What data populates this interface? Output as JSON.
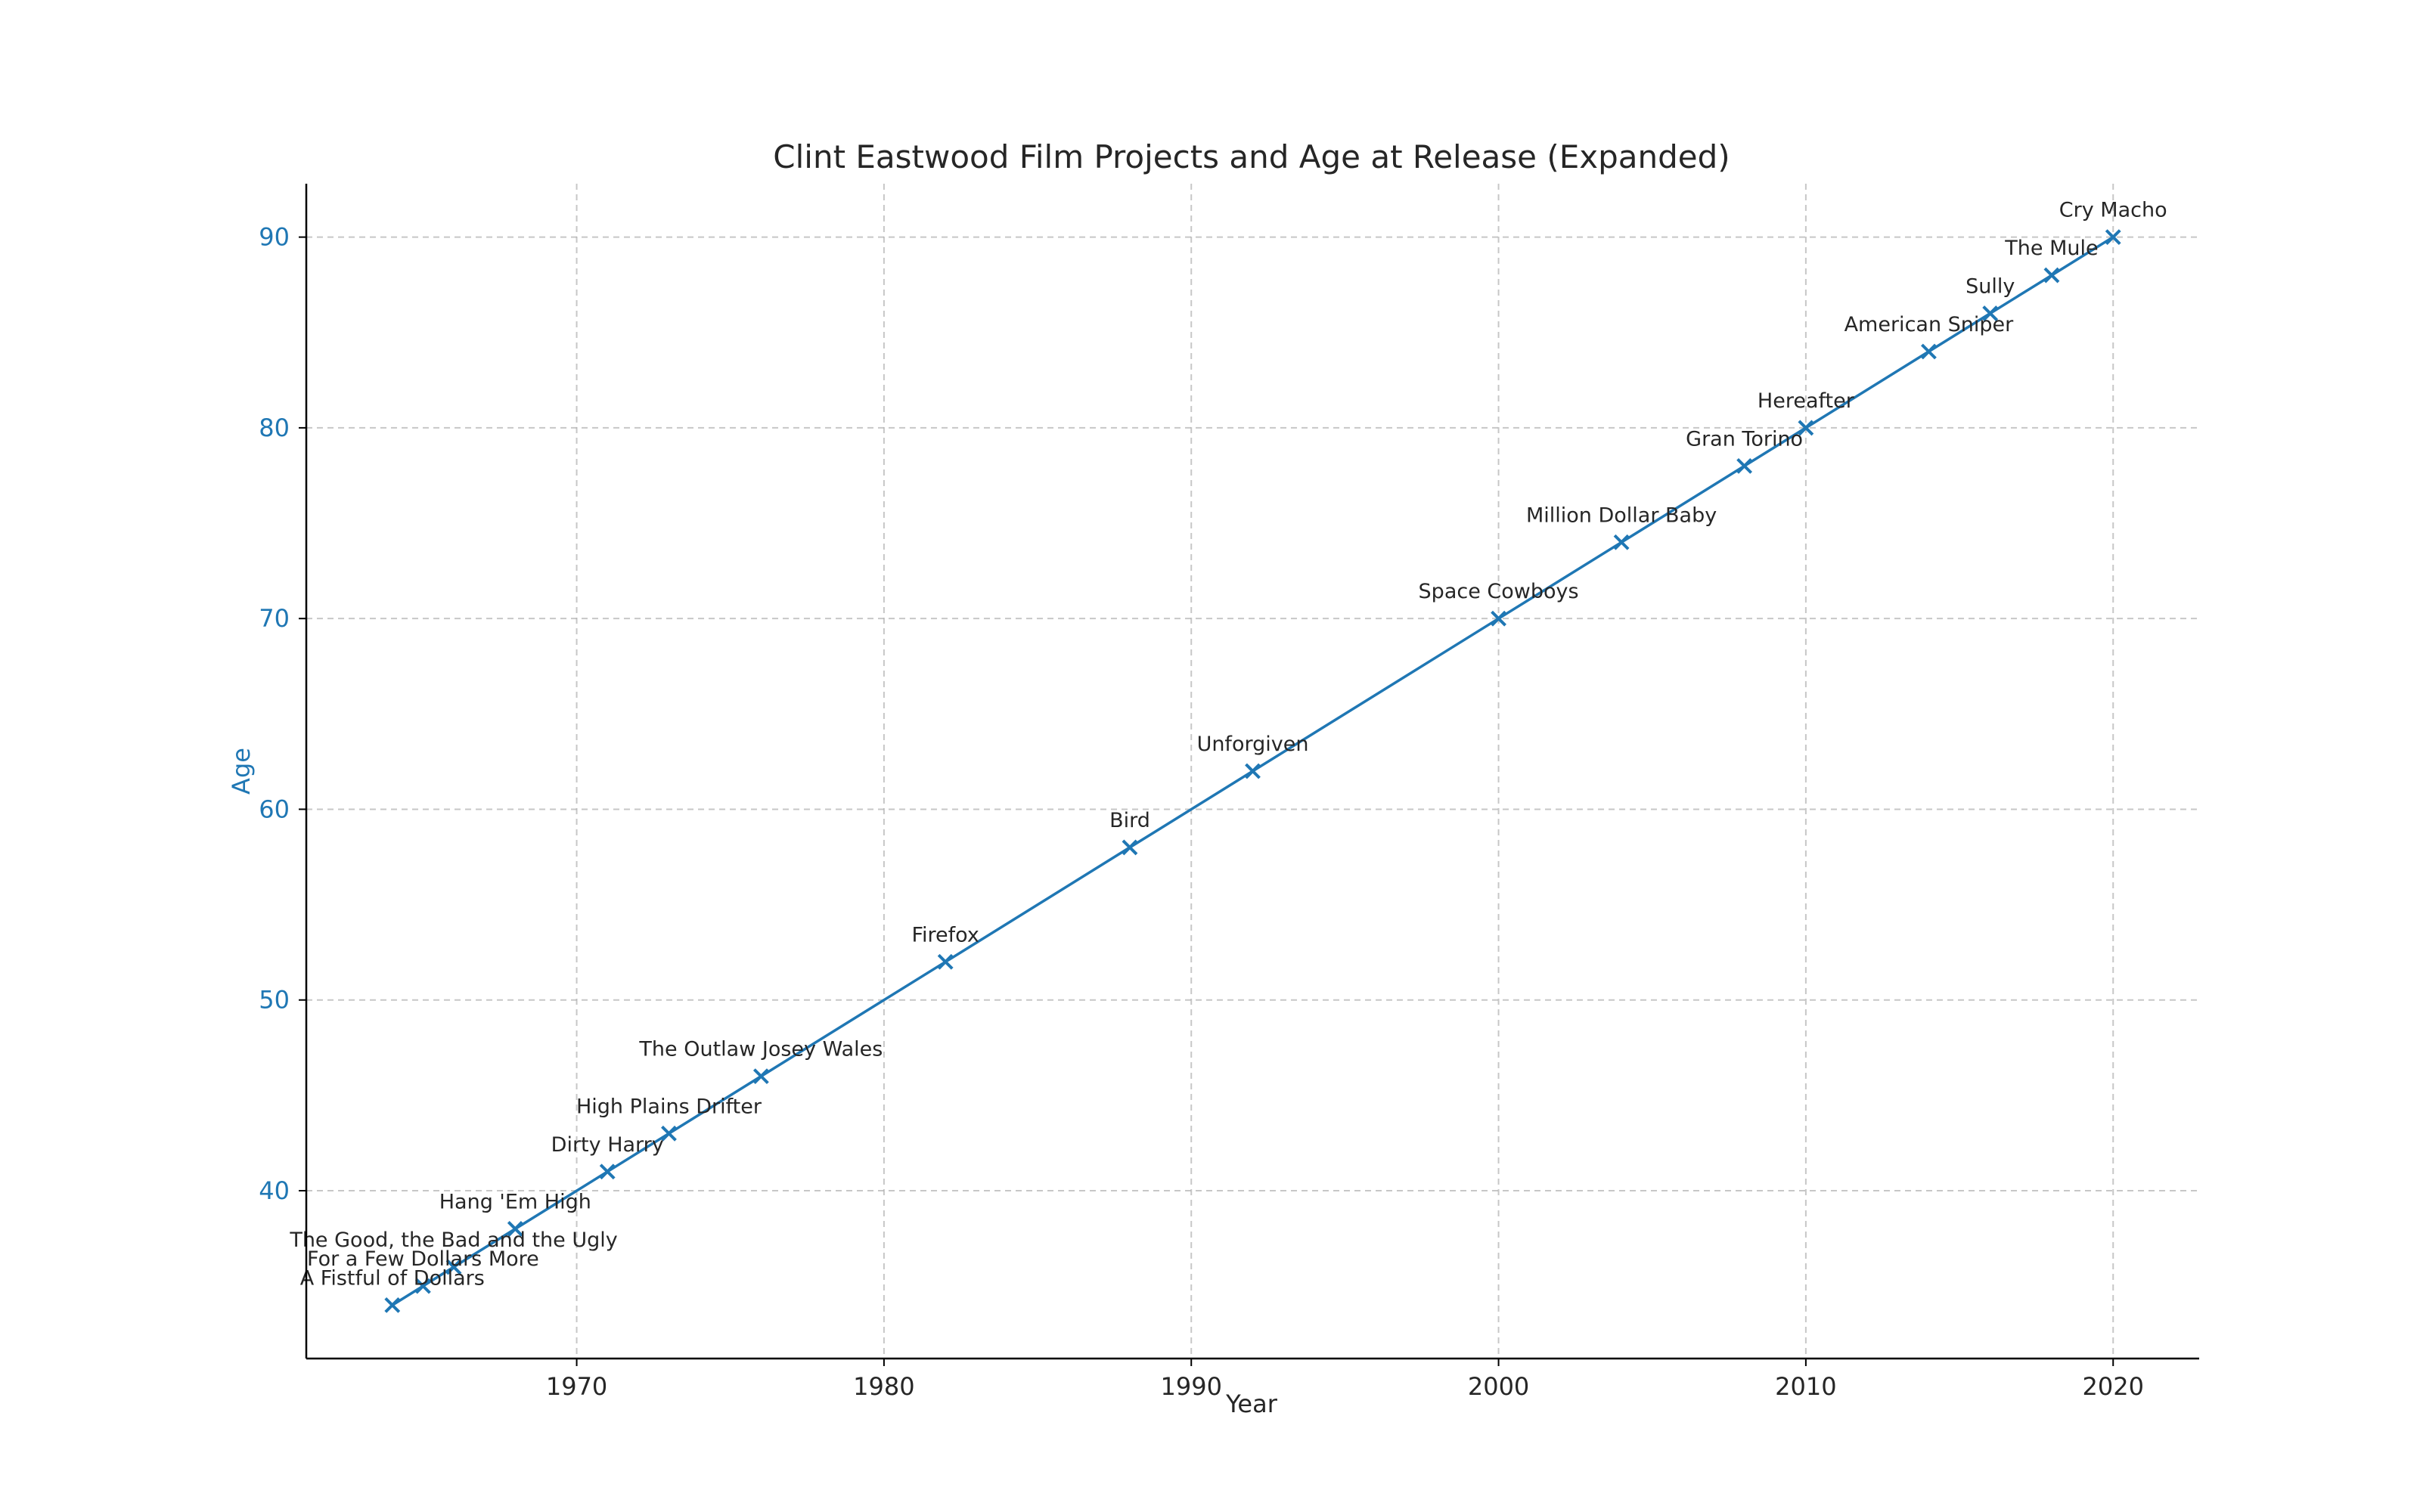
{
  "chart_data": {
    "type": "line",
    "title": "Clint Eastwood Film Projects and Age at Release (Expanded)",
    "xlabel": "Year",
    "ylabel": "Age",
    "xlim": [
      1961.2,
      2022.8
    ],
    "ylim": [
      31.2,
      92.8
    ],
    "x_ticks": [
      1970,
      1980,
      1990,
      2000,
      2010,
      2020
    ],
    "y_ticks": [
      40,
      50,
      60,
      70,
      80,
      90
    ],
    "grid": true,
    "marker": "x",
    "color": "#1f77b4",
    "points": [
      {
        "x": 1964,
        "y": 34,
        "label": "A Fistful of Dollars"
      },
      {
        "x": 1965,
        "y": 35,
        "label": "For a Few Dollars More"
      },
      {
        "x": 1966,
        "y": 36,
        "label": "The Good, the Bad and the Ugly"
      },
      {
        "x": 1968,
        "y": 38,
        "label": "Hang 'Em High"
      },
      {
        "x": 1971,
        "y": 41,
        "label": "Dirty Harry"
      },
      {
        "x": 1973,
        "y": 43,
        "label": "High Plains Drifter"
      },
      {
        "x": 1976,
        "y": 46,
        "label": "The Outlaw Josey Wales"
      },
      {
        "x": 1982,
        "y": 52,
        "label": "Firefox"
      },
      {
        "x": 1988,
        "y": 58,
        "label": "Bird"
      },
      {
        "x": 1992,
        "y": 62,
        "label": "Unforgiven"
      },
      {
        "x": 2000,
        "y": 70,
        "label": "Space Cowboys"
      },
      {
        "x": 2004,
        "y": 74,
        "label": "Million Dollar Baby"
      },
      {
        "x": 2008,
        "y": 78,
        "label": "Gran Torino"
      },
      {
        "x": 2010,
        "y": 80,
        "label": "Hereafter"
      },
      {
        "x": 2014,
        "y": 84,
        "label": "American Sniper"
      },
      {
        "x": 2016,
        "y": 86,
        "label": "Sully"
      },
      {
        "x": 2018,
        "y": 88,
        "label": "The Mule"
      },
      {
        "x": 2020,
        "y": 90,
        "label": "Cry Macho"
      }
    ]
  }
}
